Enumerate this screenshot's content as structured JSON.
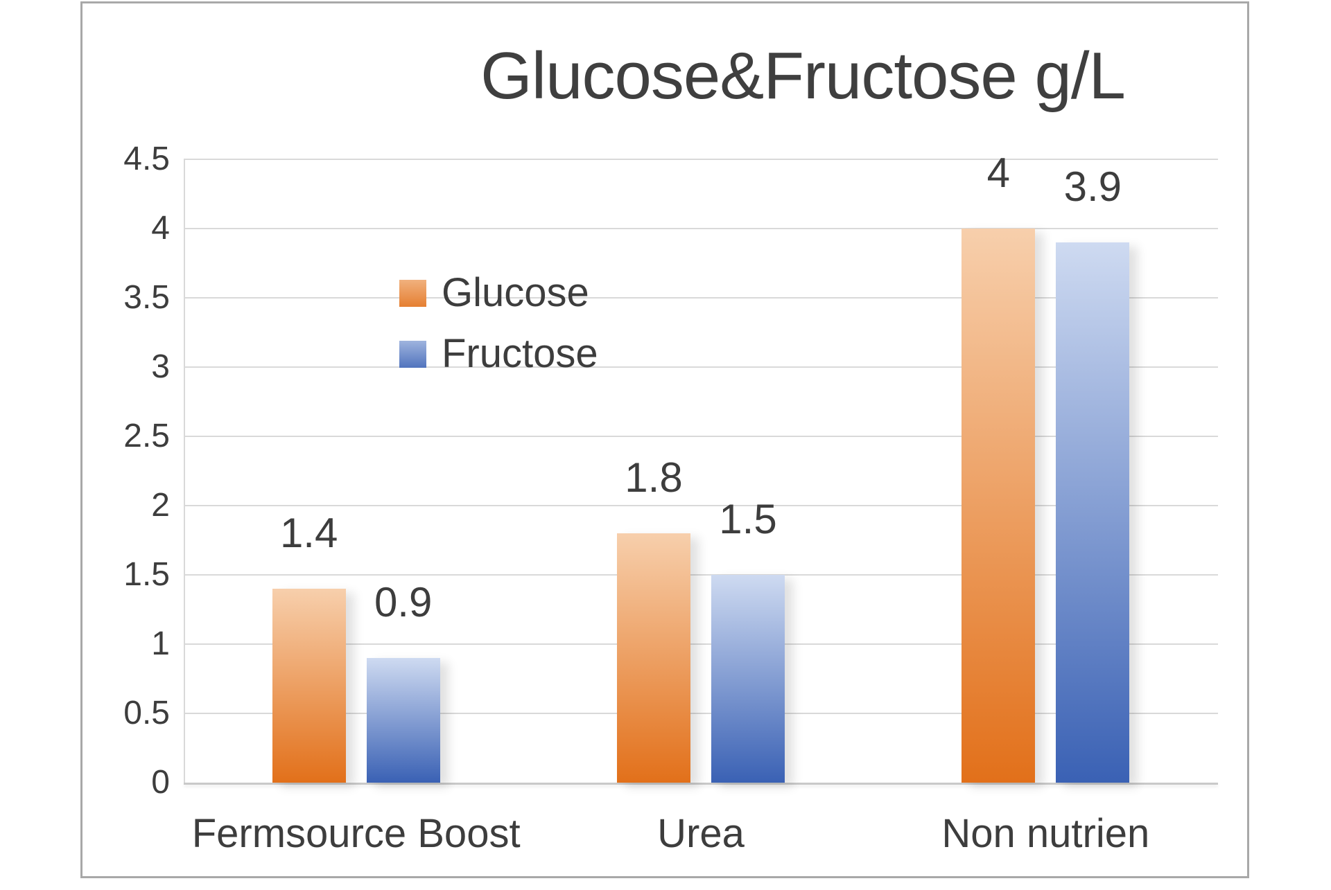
{
  "chart": {
    "frame_border_color": "#a8a8a8",
    "background_color": "#ffffff"
  },
  "chart_data": {
    "type": "bar",
    "title": "Glucose&Fructose g/L",
    "xlabel": "",
    "ylabel": "",
    "categories": [
      "Fermsource Boost",
      "Urea",
      "Non nutrien"
    ],
    "series": [
      {
        "name": "Glucose",
        "values": [
          1.4,
          1.8,
          4
        ],
        "labels": [
          "1.4",
          "1.8",
          "4"
        ],
        "color_top": "#f7cfac",
        "color_bottom": "#e2701a"
      },
      {
        "name": "Fructose",
        "values": [
          0.9,
          1.5,
          3.9
        ],
        "labels": [
          "0.9",
          "1.5",
          "3.9"
        ],
        "color_top": "#cedaf1",
        "color_bottom": "#3a61b4"
      }
    ],
    "ylim": [
      0,
      4.5
    ],
    "yticks": [
      0,
      0.5,
      1,
      1.5,
      2,
      2.5,
      3,
      3.5,
      4,
      4.5
    ],
    "ytick_labels": [
      "0",
      "0.5",
      "1",
      "1.5",
      "2",
      "2.5",
      "3",
      "3.5",
      "4",
      "4.5"
    ],
    "grid": true,
    "legend_position": "inside-upper-left",
    "text_color": "#3d3d3d",
    "grid_color": "#d9d9d9",
    "axis_line_color": "#c9c9c9"
  }
}
